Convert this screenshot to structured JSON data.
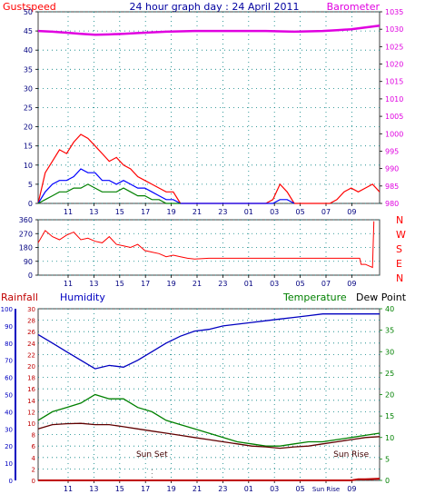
{
  "page": {
    "title": "24 hour graph day : 24 April 2011"
  },
  "chart_data": [
    {
      "id": "wind",
      "type": "line",
      "labels": {
        "left": "Gustspeed",
        "right": "Barometer"
      },
      "left_axis": {
        "min": 0,
        "max": 50,
        "ticks": [
          0,
          5,
          10,
          15,
          20,
          25,
          30,
          35,
          40,
          45,
          50
        ]
      },
      "right_axis": {
        "min": 980,
        "max": 1035,
        "ticks": [
          980,
          985,
          990,
          995,
          1000,
          1005,
          1010,
          1015,
          1020,
          1025,
          1030,
          1035
        ]
      },
      "x_tick_labels": [
        "11",
        "13",
        "15",
        "17",
        "19",
        "21",
        "23",
        "01",
        "03",
        "05",
        "07",
        "09"
      ],
      "series": [
        {
          "role": "barometer",
          "color": "#e000e0",
          "x": [
            0,
            1,
            2,
            3,
            4,
            5,
            6,
            7,
            8,
            9,
            10,
            11,
            12,
            13,
            14,
            15,
            16,
            17,
            18,
            19,
            20,
            21,
            22,
            23,
            24
          ],
          "y": [
            1029.5,
            1029.3,
            1029.0,
            1028.7,
            1028.4,
            1028.5,
            1028.7,
            1028.9,
            1029.1,
            1029.3,
            1029.4,
            1029.5,
            1029.5,
            1029.5,
            1029.5,
            1029.5,
            1029.5,
            1029.4,
            1029.3,
            1029.4,
            1029.5,
            1029.7,
            1030.0,
            1030.5,
            1031.0
          ]
        },
        {
          "role": "gust",
          "color": "#ff0000",
          "x": [
            0,
            0.5,
            1,
            1.5,
            2,
            2.5,
            3,
            3.5,
            4,
            4.5,
            5,
            5.5,
            6,
            6.5,
            7,
            7.5,
            8,
            8.5,
            9,
            9.5,
            10,
            16,
            16.5,
            17,
            17.5,
            18,
            18.5,
            19,
            19.5,
            20,
            20.5,
            21,
            21.5,
            22,
            22.5,
            23,
            23.5,
            24
          ],
          "y": [
            0,
            8,
            11,
            14,
            13,
            16,
            18,
            17,
            15,
            13,
            11,
            12,
            10,
            9,
            7,
            6,
            5,
            4,
            3,
            3,
            0,
            0,
            1,
            5,
            3,
            0,
            0,
            0,
            0,
            0,
            0,
            1,
            3,
            4,
            3,
            4,
            5,
            3
          ]
        },
        {
          "role": "avg",
          "color": "#0000ff",
          "x": [
            0,
            0.5,
            1,
            1.5,
            2,
            2.5,
            3,
            3.5,
            4,
            4.5,
            5,
            5.5,
            6,
            6.5,
            7,
            7.5,
            8,
            8.5,
            9,
            9.5,
            10,
            16.5,
            17,
            17.5,
            18
          ],
          "y": [
            0,
            3,
            5,
            6,
            6,
            7,
            9,
            8,
            8,
            6,
            6,
            5,
            6,
            5,
            4,
            4,
            3,
            2,
            1,
            1,
            0,
            0,
            1,
            1,
            0
          ]
        },
        {
          "role": "calm",
          "color": "#008000",
          "x": [
            0,
            0.5,
            1,
            1.5,
            2,
            2.5,
            3,
            3.5,
            4,
            4.5,
            5,
            5.5,
            6,
            6.5,
            7,
            7.5,
            8,
            8.5,
            9,
            9.5,
            10
          ],
          "y": [
            0,
            1,
            2,
            3,
            3,
            4,
            4,
            5,
            4,
            3,
            3,
            3,
            4,
            3,
            2,
            2,
            1,
            1,
            0,
            0,
            0
          ]
        }
      ]
    },
    {
      "id": "direction",
      "type": "line",
      "left_axis": {
        "min": 0,
        "max": 360,
        "ticks": [
          0,
          90,
          180,
          270,
          360
        ]
      },
      "compass": [
        "N",
        "W",
        "S",
        "E",
        "N"
      ],
      "x_tick_labels": [
        "11",
        "13",
        "15",
        "17",
        "19",
        "21",
        "23",
        "01",
        "03",
        "05",
        "07",
        "09"
      ],
      "series": [
        {
          "role": "wind-direction",
          "color": "#ff0000",
          "x": [
            0,
            0.5,
            1,
            1.5,
            2,
            2.5,
            3,
            3.5,
            4,
            4.5,
            5,
            5.5,
            6,
            6.5,
            7,
            7.5,
            8,
            8.5,
            9,
            9.5,
            10,
            10.5,
            11,
            12,
            13,
            14,
            15,
            16,
            17,
            18,
            19,
            20,
            21,
            22,
            22.6,
            22.7,
            23,
            23.5,
            23.6
          ],
          "y": [
            210,
            290,
            250,
            230,
            260,
            280,
            230,
            240,
            220,
            210,
            250,
            200,
            190,
            180,
            200,
            160,
            150,
            140,
            120,
            130,
            120,
            110,
            105,
            110,
            110,
            110,
            110,
            110,
            110,
            110,
            110,
            110,
            110,
            110,
            110,
            70,
            70,
            50,
            350
          ]
        }
      ]
    },
    {
      "id": "temp-humidity",
      "type": "line",
      "labels": {
        "rain": "Rainfall",
        "humidity": "Humidity",
        "temperature": "Temperature",
        "dew": "Dew Point"
      },
      "humidity_axis": {
        "min": 0,
        "max": 100,
        "ticks": [
          0,
          10,
          20,
          30,
          40,
          50,
          60,
          70,
          80,
          90,
          100
        ]
      },
      "rain_axis": {
        "min": 0,
        "max": 30,
        "ticks": [
          0,
          2,
          4,
          6,
          8,
          10,
          12,
          14,
          16,
          18,
          20,
          22,
          24,
          26,
          28,
          30
        ]
      },
      "temp_axis": {
        "min": 0,
        "max": 40,
        "ticks": [
          0,
          5,
          10,
          15,
          20,
          25,
          30,
          35,
          40
        ]
      },
      "x_tick_labels": [
        "11",
        "13",
        "15",
        "17",
        "19",
        "21",
        "23",
        "01",
        "03",
        "05",
        "Sun Rise",
        "09"
      ],
      "annotations": [
        {
          "text": "Sun Set",
          "x": 8.0
        },
        {
          "text": "Sun Rise",
          "x": 22.0
        }
      ],
      "series": [
        {
          "role": "humidity",
          "color": "#0000c0",
          "axis": "humidity",
          "x": [
            0,
            1,
            2,
            3,
            4,
            5,
            6,
            7,
            8,
            9,
            10,
            11,
            12,
            13,
            14,
            15,
            16,
            17,
            18,
            19,
            20,
            21,
            22,
            23,
            24
          ],
          "y": [
            85,
            80,
            75,
            70,
            65,
            67,
            66,
            70,
            75,
            80,
            84,
            87,
            88,
            90,
            91,
            92,
            93,
            94,
            95,
            96,
            97,
            97,
            97,
            97,
            97
          ]
        },
        {
          "role": "temperature",
          "color": "#008000",
          "axis": "temp",
          "x": [
            0,
            1,
            2,
            3,
            4,
            5,
            6,
            7,
            8,
            9,
            10,
            11,
            12,
            13,
            14,
            15,
            16,
            17,
            18,
            19,
            20,
            21,
            22,
            23,
            24
          ],
          "y": [
            14,
            16,
            17,
            18,
            20,
            19,
            19,
            17,
            16,
            14,
            13,
            12,
            11,
            10,
            9,
            8.5,
            8,
            8,
            8.5,
            9,
            9,
            9.5,
            10,
            10.5,
            11
          ]
        },
        {
          "role": "dew-point",
          "color": "#600000",
          "axis": "temp",
          "x": [
            0,
            1,
            2,
            3,
            4,
            5,
            6,
            7,
            8,
            9,
            10,
            11,
            12,
            13,
            14,
            15,
            16,
            17,
            18,
            19,
            20,
            21,
            22,
            23,
            24
          ],
          "y": [
            12,
            13,
            13.2,
            13.3,
            13,
            13,
            12.5,
            12,
            11.5,
            11,
            10.5,
            10,
            9.5,
            9,
            8.5,
            8,
            7.8,
            7.5,
            7.8,
            8,
            8.5,
            9,
            9.5,
            10,
            10.2
          ]
        },
        {
          "role": "rainfall",
          "color": "#c00000",
          "axis": "rain",
          "x": [
            0,
            22,
            22.5,
            23,
            24
          ],
          "y": [
            0,
            0,
            0.2,
            0.2,
            0.3
          ]
        }
      ]
    }
  ]
}
